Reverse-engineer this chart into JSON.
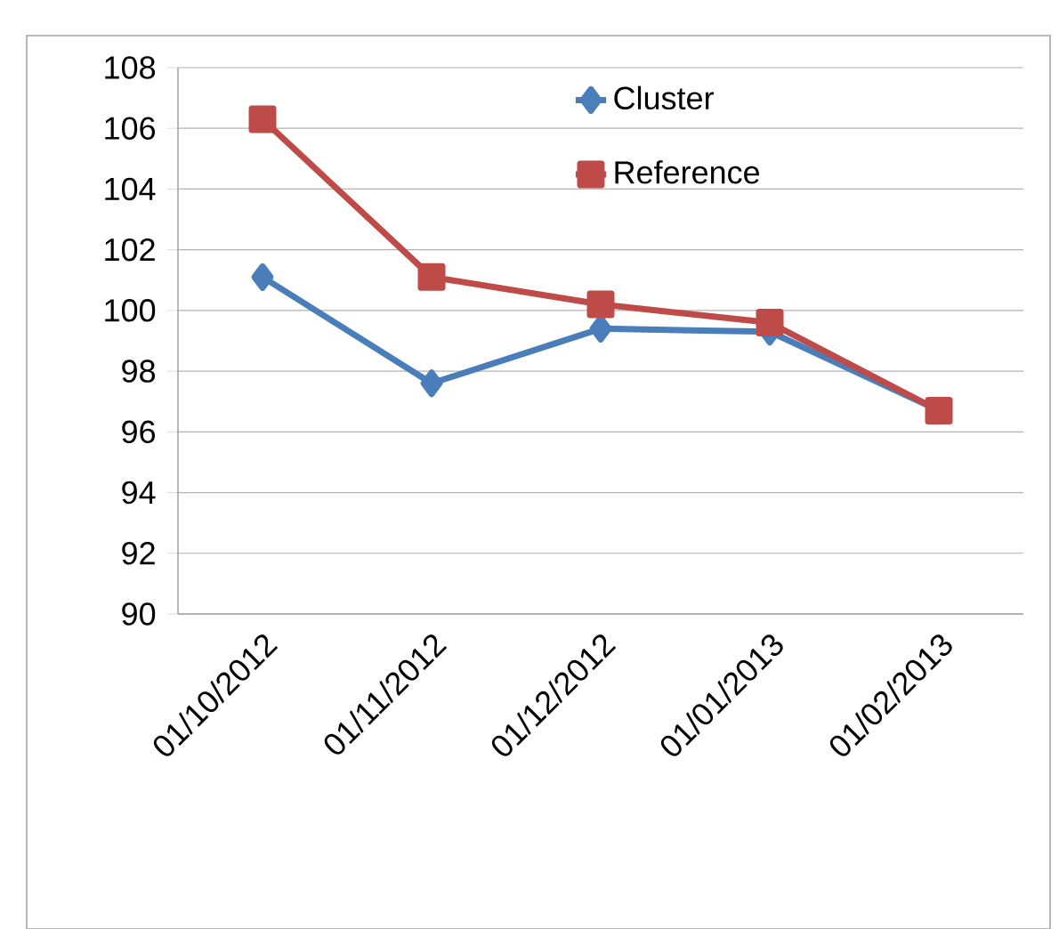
{
  "chart_data": {
    "type": "line",
    "categories": [
      "01/10/2012",
      "01/11/2012",
      "01/12/2012",
      "01/01/2013",
      "01/02/2013"
    ],
    "series": [
      {
        "name": "Cluster",
        "color": "#4a7ebb",
        "marker": "diamond",
        "values": [
          101.1,
          97.6,
          99.4,
          99.3,
          96.7
        ]
      },
      {
        "name": "Reference",
        "color": "#be4b48",
        "marker": "square",
        "values": [
          106.3,
          101.1,
          100.2,
          99.6,
          96.7
        ]
      }
    ],
    "ylim": [
      90,
      108
    ],
    "yticks": [
      90,
      92,
      94,
      96,
      98,
      100,
      102,
      104,
      106,
      108
    ],
    "grid": "y",
    "legend": "top right",
    "line_style": "solid"
  }
}
